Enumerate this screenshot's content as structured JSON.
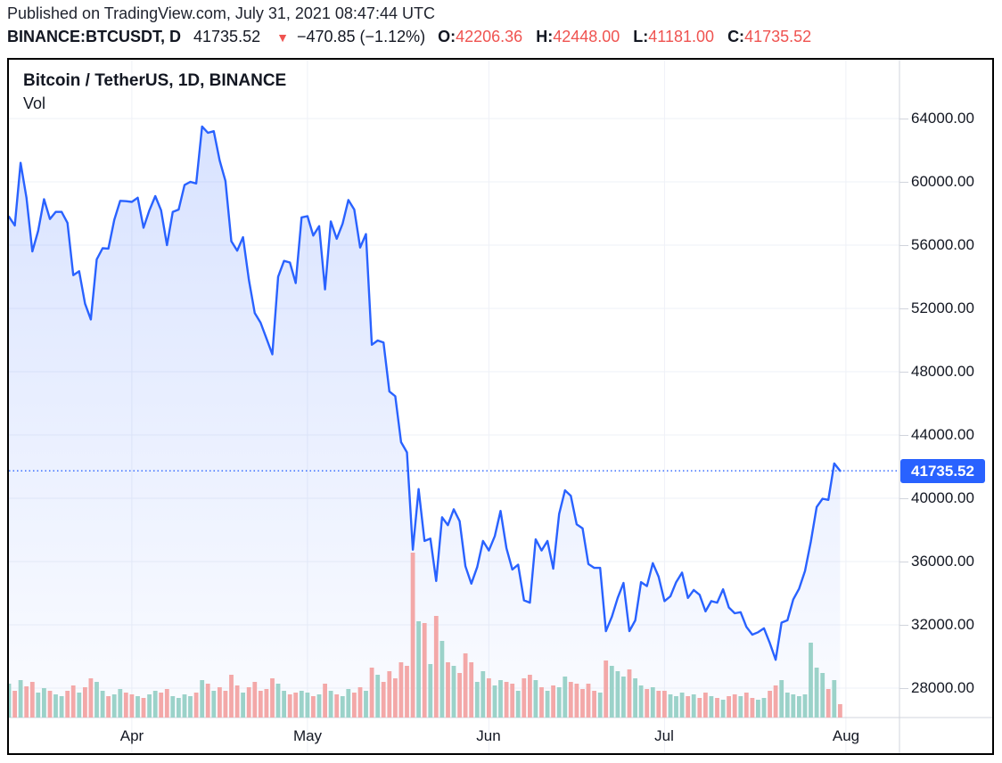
{
  "header": {
    "published_line": "Published on TradingView.com, July 31, 2021 08:47:44 UTC",
    "symbol_interval": "BINANCE:BTCUSDT, D",
    "last_price": "41735.52",
    "direction_icon": "down-triangle",
    "change": "−470.85 (−1.12%)",
    "ohlc": [
      {
        "label": "O:",
        "value": "42206.36"
      },
      {
        "label": "H:",
        "value": "42448.00"
      },
      {
        "label": "L:",
        "value": "41181.00"
      },
      {
        "label": "C:",
        "value": "41735.52"
      }
    ]
  },
  "chart": {
    "title": "Bitcoin / TetherUS, 1D, BINANCE",
    "indicator_label": "Vol",
    "price_tag": "41735.52",
    "y_axis": [
      {
        "label": "64000.00",
        "value": 64000
      },
      {
        "label": "60000.00",
        "value": 60000
      },
      {
        "label": "56000.00",
        "value": 56000
      },
      {
        "label": "52000.00",
        "value": 52000
      },
      {
        "label": "48000.00",
        "value": 48000
      },
      {
        "label": "44000.00",
        "value": 44000
      },
      {
        "label": "40000.00",
        "value": 40000
      },
      {
        "label": "36000.00",
        "value": 36000
      },
      {
        "label": "32000.00",
        "value": 32000
      },
      {
        "label": "28000.00",
        "value": 28000
      }
    ],
    "colors": {
      "accent_blue": "#2962ff",
      "down_red": "#ef5350",
      "text": "#131722",
      "volume_up": "#9bd2c9",
      "volume_down": "#f3a8a8",
      "gridline": "#eef1f7",
      "axis_line": "#d1d4dc",
      "price_tag_bg": "#2962ff",
      "price_tag_text": "#ffffff"
    }
  },
  "chart_data": {
    "type": "area",
    "title": "Bitcoin / TetherUS, 1D, BINANCE",
    "interval": "1D",
    "exchange": "BINANCE",
    "x_start_date": "2021-03-11",
    "x_end_date": "2021-07-31",
    "ylim": [
      26100,
      67700
    ],
    "grid": true,
    "y_gridlines": [
      64000,
      60000,
      56000,
      52000,
      48000,
      44000,
      40000,
      36000,
      32000,
      28000
    ],
    "x_ticks": [
      {
        "label": "Apr",
        "day_index": 21
      },
      {
        "label": "May",
        "day_index": 51
      },
      {
        "label": "Jun",
        "day_index": 82
      },
      {
        "label": "Jul",
        "day_index": 112
      },
      {
        "label": "Aug",
        "day_index": 143
      }
    ],
    "price_line_value": 41735.52,
    "ohlc_today": {
      "open": 42206.36,
      "high": 42448.0,
      "low": 41181.0,
      "close": 41735.52
    },
    "closes": [
      57800,
      57240,
      61200,
      59000,
      55600,
      56900,
      58900,
      57650,
      58100,
      58100,
      57400,
      54100,
      54350,
      52300,
      51300,
      55100,
      55800,
      55780,
      57600,
      58800,
      58780,
      58730,
      59000,
      57100,
      58200,
      59100,
      58200,
      56000,
      58100,
      58250,
      59800,
      60000,
      59900,
      63500,
      63100,
      63200,
      61350,
      60050,
      56250,
      55650,
      56500,
      53800,
      51700,
      51100,
      50100,
      49100,
      54000,
      55000,
      54900,
      53600,
      57750,
      57830,
      56600,
      57200,
      53200,
      57500,
      56400,
      57350,
      58850,
      58250,
      55850,
      56700,
      49700,
      49970,
      49850,
      46750,
      46450,
      43550,
      42900,
      36750,
      40580,
      37300,
      37450,
      34770,
      38800,
      38300,
      39300,
      38550,
      35700,
      34600,
      35650,
      37300,
      36700,
      37600,
      39200,
      36850,
      35500,
      35800,
      33550,
      33400,
      37400,
      36700,
      37300,
      35550,
      39000,
      40500,
      40150,
      38350,
      38100,
      35850,
      35600,
      35600,
      31600,
      32500,
      33700,
      34650,
      31600,
      32280,
      34700,
      34450,
      35900,
      35040,
      33500,
      33800,
      34700,
      35300,
      33700,
      34200,
      33900,
      32850,
      33500,
      33400,
      34250,
      33100,
      32730,
      32800,
      31870,
      31380,
      31530,
      31780,
      30840,
      29790,
      32140,
      32290,
      33600,
      34290,
      35400,
      37240,
      39450,
      39970,
      39900,
      42200,
      41735.52
    ],
    "volumes_relative": [
      38,
      30,
      42,
      35,
      40,
      28,
      33,
      30,
      26,
      24,
      30,
      36,
      28,
      34,
      44,
      40,
      30,
      24,
      26,
      32,
      28,
      26,
      24,
      22,
      26,
      30,
      28,
      32,
      24,
      22,
      26,
      24,
      28,
      42,
      38,
      30,
      34,
      30,
      48,
      36,
      28,
      34,
      40,
      30,
      32,
      44,
      38,
      30,
      26,
      28,
      30,
      28,
      24,
      26,
      38,
      30,
      26,
      24,
      32,
      28,
      34,
      30,
      56,
      48,
      40,
      52,
      44,
      62,
      58,
      185,
      108,
      106,
      60,
      114,
      86,
      62,
      58,
      50,
      72,
      62,
      40,
      52,
      44,
      36,
      42,
      40,
      38,
      30,
      44,
      48,
      42,
      34,
      30,
      36,
      34,
      46,
      40,
      38,
      32,
      38,
      30,
      28,
      64,
      58,
      52,
      46,
      54,
      44,
      36,
      32,
      34,
      30,
      30,
      26,
      24,
      28,
      24,
      26,
      22,
      28,
      24,
      22,
      20,
      24,
      26,
      24,
      28,
      22,
      20,
      22,
      30,
      36,
      42,
      28,
      26,
      24,
      26,
      84,
      56,
      50,
      32,
      42,
      15
    ]
  }
}
